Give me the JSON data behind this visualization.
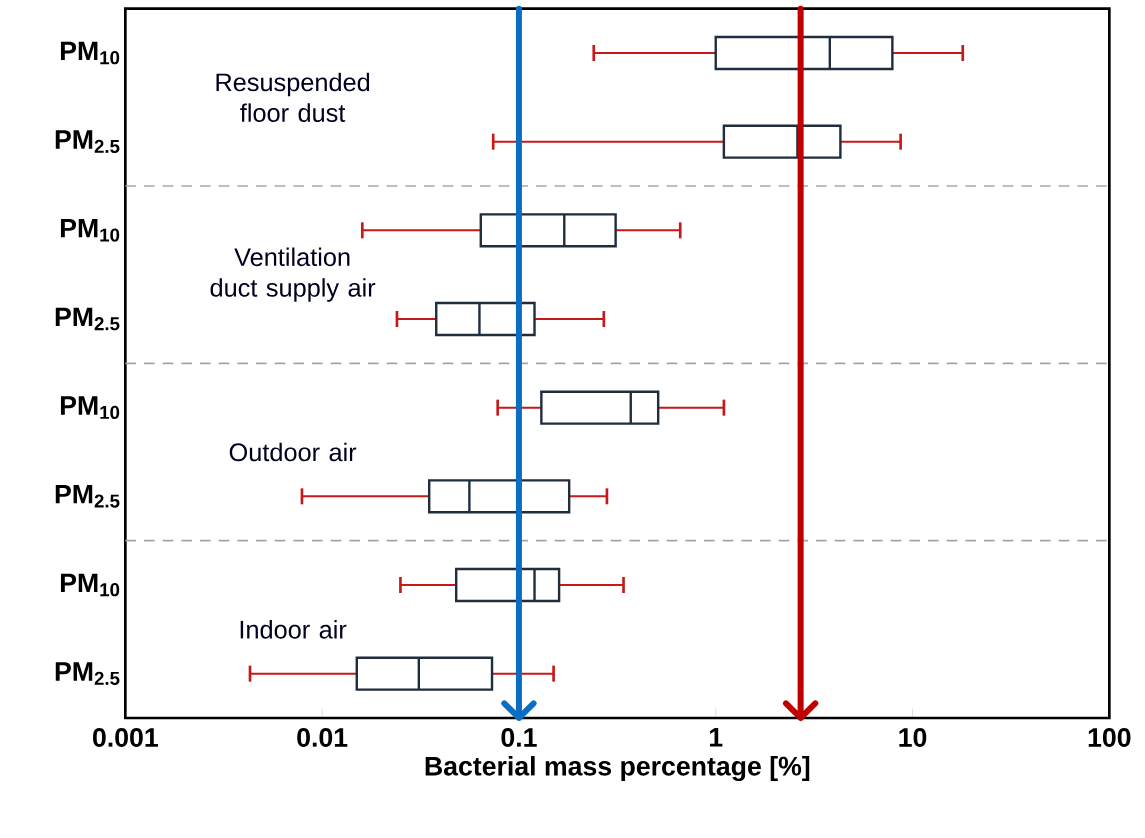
{
  "chart_data": {
    "type": "box",
    "orientation": "horizontal",
    "log": "x",
    "categories": [
      "PM$_{10}$",
      "PM$_{2.5}$",
      "PM$_{10}$",
      "PM$_{2.5}$",
      "PM$_{10}$",
      "PM$_{2.5}$",
      "PM$_{10}$",
      "PM$_{2.5}$"
    ],
    "xlabel": "Bacterial mass percentage [%]",
    "xlim": [
      0.001,
      100
    ],
    "xticks": [
      0.001,
      0.01,
      0.1,
      1,
      10,
      100
    ],
    "series": [
      {
        "color": "#1f2d3d",
        "boxes": [
          {
            "low": 0.24,
            "q1": 1.0,
            "median": 3.8,
            "q3": 7.9,
            "high": 18
          },
          {
            "low": 0.074,
            "q1": 1.1,
            "median": 2.6,
            "q3": 4.3,
            "high": 8.7
          },
          {
            "low": 0.016,
            "q1": 0.064,
            "median": 0.17,
            "q3": 0.31,
            "high": 0.66
          },
          {
            "low": 0.024,
            "q1": 0.038,
            "median": 0.063,
            "q3": 0.12,
            "high": 0.27
          },
          {
            "low": 0.078,
            "q1": 0.13,
            "median": 0.37,
            "q3": 0.51,
            "high": 1.1
          },
          {
            "low": 0.0079,
            "q1": 0.035,
            "median": 0.056,
            "q3": 0.18,
            "high": 0.28
          },
          {
            "low": 0.025,
            "q1": 0.048,
            "median": 0.12,
            "q3": 0.16,
            "high": 0.34
          },
          {
            "low": 0.0043,
            "q1": 0.015,
            "median": 0.031,
            "q3": 0.073,
            "high": 0.15
          }
        ]
      }
    ],
    "annotations": [
      "Resuspended floor dust",
      "Ventilation duct supply air",
      "Outdoor air",
      "Indoor air"
    ],
    "ref_lines": [
      {
        "axis": "x",
        "value": 0.1,
        "color": "#0a6fc2"
      },
      {
        "axis": "x",
        "value": 2.7,
        "color": "#c00000"
      }
    ],
    "grid": false
  }
}
